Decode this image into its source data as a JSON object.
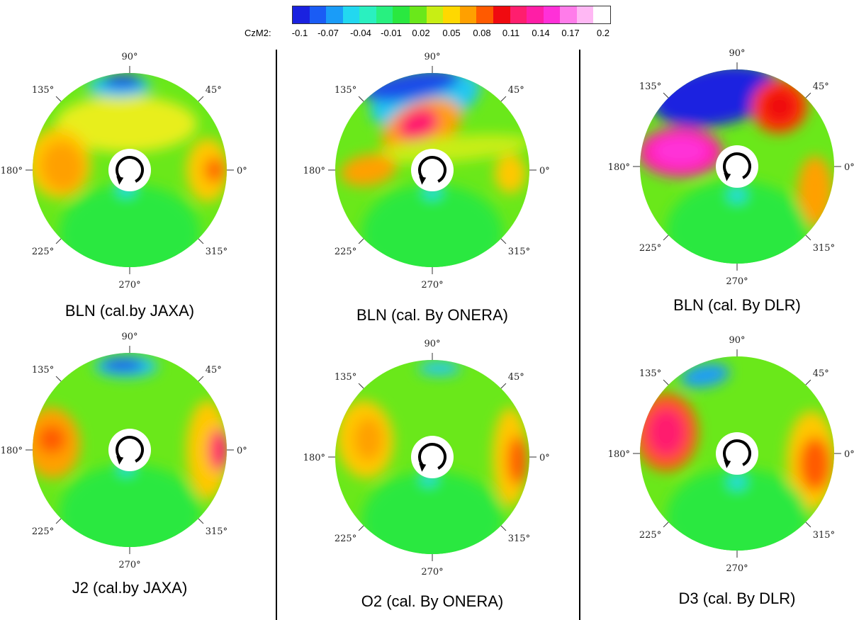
{
  "colorbar": {
    "label": "CzM2:",
    "ticks": [
      "-0.1",
      "-0.07",
      "-0.04",
      "-0.01",
      "0.02",
      "0.05",
      "0.08",
      "0.11",
      "0.14",
      "0.17",
      "0.2"
    ],
    "colors": [
      "#1a22e0",
      "#1a5cf5",
      "#1a9cf8",
      "#22d8f0",
      "#2af0c0",
      "#28f080",
      "#2ae840",
      "#6ae81a",
      "#c8ee14",
      "#ffd800",
      "#ffa000",
      "#ff5a00",
      "#f00a10",
      "#ff1e6e",
      "#ff1ea6",
      "#ff30d8",
      "#ff7cea",
      "#ffb8f4",
      "#ffffff"
    ]
  },
  "angle_labels": [
    "90°",
    "45°",
    "0°",
    "315°",
    "270°",
    "225°",
    "180°",
    "135°"
  ],
  "panels": [
    {
      "caption": "BLN (cal.by JAXA)"
    },
    {
      "caption": "BLN (cal. By ONERA)"
    },
    {
      "caption": "BLN (cal. By DLR)"
    },
    {
      "caption": "J2 (cal.by JAXA)"
    },
    {
      "caption": "O2 (cal. By ONERA)"
    },
    {
      "caption": "D3 (cal. By DLR)"
    }
  ]
}
